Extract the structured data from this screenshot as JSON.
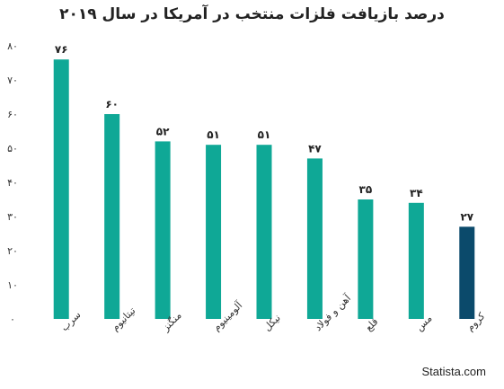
{
  "chart_data": {
    "type": "bar",
    "title": "درصد بازیافت فلزات منتخب در آمریکا در سال ۲۰۱۹",
    "categories": [
      "سرب",
      "تیتانیوم",
      "منگنز",
      "آلومینیوم",
      "نیکل",
      "آهن و فولاد",
      "قلع",
      "مس",
      "کروم"
    ],
    "values": [
      76,
      60,
      52,
      51,
      51,
      47,
      35,
      34,
      27
    ],
    "value_labels": [
      "۷۶",
      "۶۰",
      "۵۲",
      "۵۱",
      "۵۱",
      "۴۷",
      "۳۵",
      "۳۴",
      "۲۷"
    ],
    "bar_colors": [
      "#0fa896",
      "#0fa896",
      "#0fa896",
      "#0fa896",
      "#0fa896",
      "#0fa896",
      "#0fa896",
      "#0fa896",
      "#0b4a6b"
    ],
    "ylim": [
      0,
      80
    ],
    "y_ticks": [
      0,
      10,
      20,
      30,
      40,
      50,
      60,
      70,
      80
    ],
    "y_tick_labels": [
      "۰",
      "۱۰",
      "۲۰",
      "۳۰",
      "۴۰",
      "۵۰",
      "۶۰",
      "۷۰",
      "۸۰"
    ],
    "xlabel": "",
    "ylabel": "",
    "grid": false,
    "legend": "none"
  },
  "credit": "Statista.com"
}
